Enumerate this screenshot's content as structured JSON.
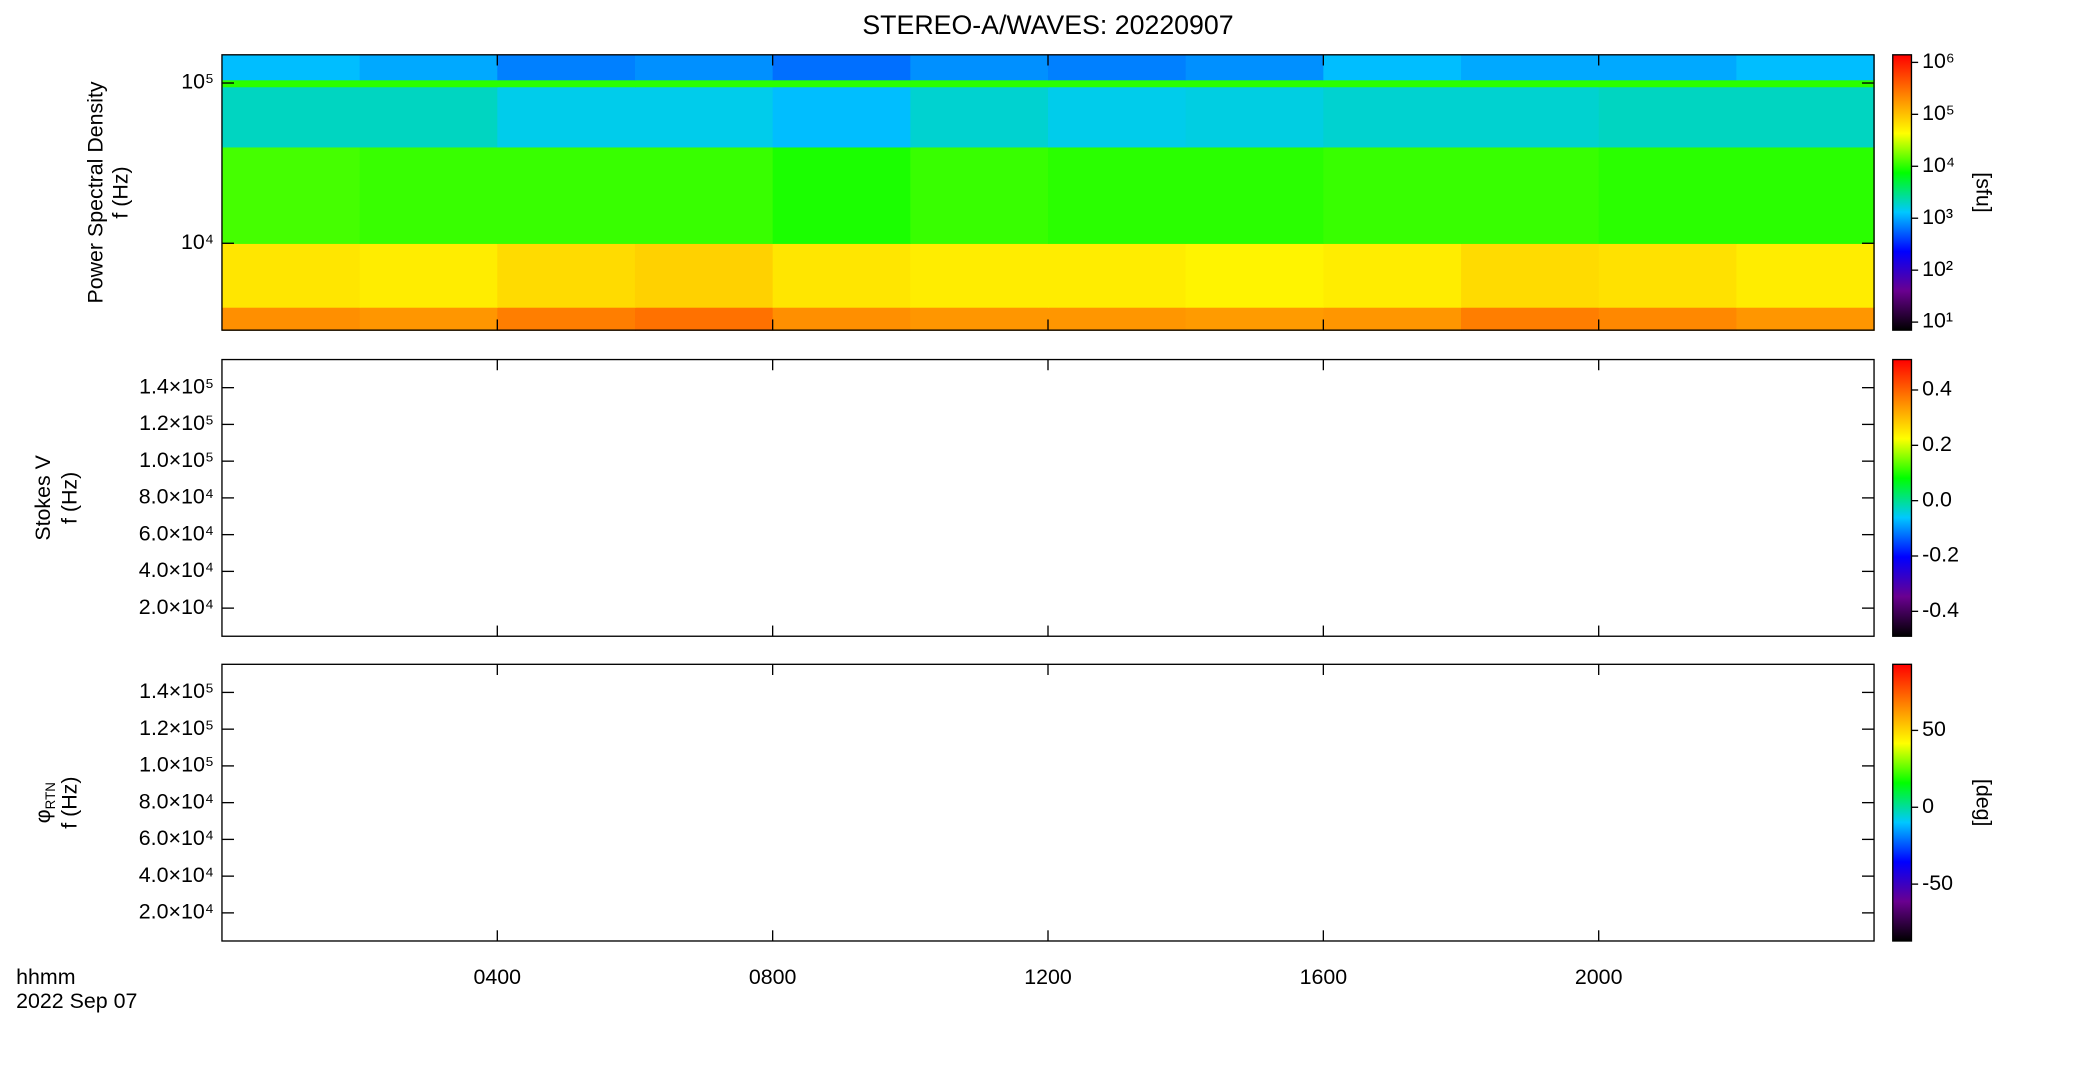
{
  "chart_data": [
    {
      "type": "heatmap",
      "title": "STEREO-A/WAVES: 20220907",
      "ylabel": "Power Spectral Density",
      "ylabel2": "f (Hz)",
      "cbar_label": "[sfu]",
      "yscale": "log",
      "ylim": [
        2870,
        150000
      ],
      "yticks": [
        {
          "value": 10000,
          "label": "10⁴"
        },
        {
          "value": 100000,
          "label": "10⁵"
        }
      ],
      "xlim": [
        0,
        24
      ],
      "x_bins": [
        0,
        2,
        4,
        6,
        8,
        10,
        12,
        14,
        16,
        18,
        20,
        22,
        24
      ],
      "y_bins": [
        2870,
        4000,
        10000,
        40000,
        95000,
        105000,
        150000
      ],
      "values": [
        [
          200000,
          180000,
          250000,
          300000,
          200000,
          180000,
          180000,
          170000,
          180000,
          250000,
          220000,
          180000
        ],
        [
          60000,
          55000,
          70000,
          80000,
          60000,
          55000,
          55000,
          50000,
          55000,
          70000,
          65000,
          55000
        ],
        [
          12000,
          11000,
          11000,
          11000,
          9000,
          11000,
          10000,
          10000,
          11000,
          11000,
          10000,
          10000
        ],
        [
          2000,
          2000,
          1500,
          1500,
          1200,
          1800,
          1500,
          1600,
          1800,
          1800,
          2000,
          2000
        ],
        [
          10000,
          10000,
          10000,
          10000,
          10000,
          10000,
          10000,
          10000,
          10000,
          10000,
          10000,
          10000
        ],
        [
          1200,
          1000,
          700,
          800,
          600,
          800,
          700,
          800,
          1200,
          1000,
          1000,
          1200
        ]
      ],
      "cscale": "log",
      "clim": [
        7,
        1400000
      ],
      "cticks": [
        {
          "value": 10,
          "label": "10¹"
        },
        {
          "value": 100,
          "label": "10²"
        },
        {
          "value": 1000,
          "label": "10³"
        },
        {
          "value": 10000,
          "label": "10⁴"
        },
        {
          "value": 100000,
          "label": "10⁵"
        },
        {
          "value": 1000000,
          "label": "10⁶"
        }
      ],
      "colormap": [
        "#000000",
        "#6a0090",
        "#0000ff",
        "#00c8ff",
        "#00ff00",
        "#ffff00",
        "#ff8000",
        "#ff0000"
      ]
    },
    {
      "type": "heatmap",
      "ylabel": "Stokes V",
      "ylabel2": "f (Hz)",
      "yscale": "linear",
      "ylim": [
        4700,
        155300
      ],
      "yticks": [
        {
          "value": 20000,
          "label": "2.0×10⁴"
        },
        {
          "value": 40000,
          "label": "4.0×10⁴"
        },
        {
          "value": 60000,
          "label": "6.0×10⁴"
        },
        {
          "value": 80000,
          "label": "8.0×10⁴"
        },
        {
          "value": 100000,
          "label": "1.0×10⁵"
        },
        {
          "value": 120000,
          "label": "1.2×10⁵"
        },
        {
          "value": 140000,
          "label": "1.4×10⁵"
        }
      ],
      "xlim": [
        0,
        24
      ],
      "cscale": "linear",
      "clim": [
        -0.49,
        0.51
      ],
      "cticks": [
        -0.4,
        -0.2,
        {
          "value": 0,
          "label": "0.0"
        },
        0.2,
        0.4
      ],
      "colormap": [
        "#000000",
        "#6a0090",
        "#0000ff",
        "#00c8ff",
        "#00ff00",
        "#ffff00",
        "#ff8000",
        "#ff0000"
      ]
    },
    {
      "type": "heatmap",
      "ylabel": "φ",
      "ylabel_sub": "RTN",
      "ylabel2": "f (Hz)",
      "cbar_label": "[deg]",
      "yscale": "linear",
      "ylim": [
        4700,
        155300
      ],
      "yticks": [
        {
          "value": 20000,
          "label": "2.0×10⁴"
        },
        {
          "value": 40000,
          "label": "4.0×10⁴"
        },
        {
          "value": 60000,
          "label": "6.0×10⁴"
        },
        {
          "value": 80000,
          "label": "8.0×10⁴"
        },
        {
          "value": 100000,
          "label": "1.0×10⁵"
        },
        {
          "value": 120000,
          "label": "1.2×10⁵"
        },
        {
          "value": 140000,
          "label": "1.4×10⁵"
        }
      ],
      "xlim": [
        0,
        24
      ],
      "xticks": [
        {
          "value": 4,
          "label": "0400"
        },
        {
          "value": 8,
          "label": "0800"
        },
        {
          "value": 12,
          "label": "1200"
        },
        {
          "value": 16,
          "label": "1600"
        },
        {
          "value": 20,
          "label": "2000"
        }
      ],
      "xlabel": "hhmm",
      "date_label": "2022 Sep 07",
      "cscale": "linear",
      "clim": [
        -87,
        93
      ],
      "cticks": [
        -50,
        0,
        50
      ],
      "colormap": [
        "#000000",
        "#6a0090",
        "#0000ff",
        "#00c8ff",
        "#00ff00",
        "#ffff00",
        "#ff8000",
        "#ff0000"
      ]
    }
  ]
}
